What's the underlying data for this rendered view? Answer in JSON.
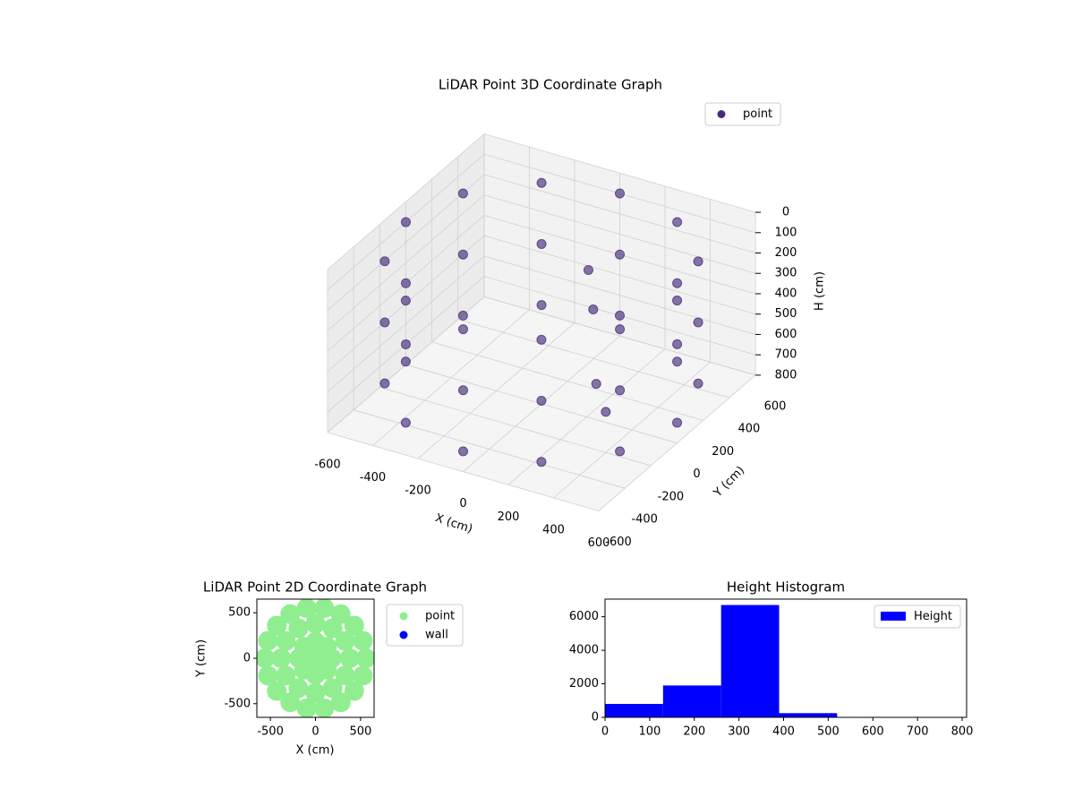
{
  "chart_data": [
    {
      "type": "scatter3d",
      "title": "LiDAR Point 3D Coordinate Graph",
      "xlabel": "X (cm)",
      "ylabel": "Y (cm)",
      "zlabel": "H (cm)",
      "xlim": [
        -600,
        600
      ],
      "ylim": [
        -600,
        600
      ],
      "zlim": [
        800,
        0
      ],
      "xticks": [
        -600,
        -400,
        -200,
        0,
        200,
        400,
        600
      ],
      "yticks": [
        -600,
        -400,
        -200,
        0,
        200,
        400,
        600
      ],
      "zticks": [
        0,
        100,
        200,
        300,
        400,
        500,
        600,
        700,
        800
      ],
      "legend": "upper right",
      "series": [
        {
          "name": "point",
          "color": "#472c7a",
          "x": [
            600,
            520,
            300,
            0,
            -300,
            -520,
            -600,
            -520,
            -300,
            0,
            300,
            520,
            600,
            520,
            300,
            0,
            -300,
            -520,
            -600,
            -520,
            -300,
            0,
            300,
            520,
            600,
            520,
            300,
            0,
            -300,
            -520,
            -600,
            -520,
            -300,
            0,
            300,
            520,
            150,
            200,
            300,
            400
          ],
          "y": [
            0,
            300,
            520,
            600,
            520,
            300,
            0,
            -300,
            -520,
            -600,
            -520,
            -300,
            0,
            300,
            520,
            600,
            520,
            300,
            0,
            -300,
            -520,
            -600,
            -520,
            -300,
            0,
            300,
            520,
            600,
            520,
            300,
            0,
            -300,
            -520,
            -600,
            -520,
            -300,
            100,
            50,
            -100,
            -200
          ],
          "z": [
            100,
            100,
            100,
            100,
            100,
            100,
            100,
            100,
            100,
            100,
            100,
            100,
            400,
            400,
            400,
            400,
            400,
            400,
            400,
            400,
            400,
            400,
            400,
            400,
            700,
            700,
            700,
            700,
            700,
            700,
            700,
            700,
            700,
            700,
            700,
            700,
            150,
            300,
            550,
            600
          ]
        }
      ]
    },
    {
      "type": "scatter",
      "title": "LiDAR Point 2D Coordinate Graph",
      "xlabel": "X (cm)",
      "ylabel": "Y (cm)",
      "xlim": [
        -650,
        650
      ],
      "ylim": [
        -650,
        650
      ],
      "xticks": [
        -500,
        0,
        500
      ],
      "yticks": [
        -500,
        0,
        500
      ],
      "legend": "outside",
      "series": [
        {
          "name": "point",
          "color": "#90ee90",
          "x": [
            0,
            180,
            127,
            0,
            -127,
            -180,
            -127,
            0,
            127,
            380,
            329,
            190,
            0,
            -190,
            -329,
            -380,
            -329,
            -190,
            0,
            190,
            329,
            560,
            526,
            429,
            280,
            97,
            -97,
            -280,
            -429,
            -526,
            -560,
            -526,
            -429,
            -280,
            -97,
            97,
            280,
            429,
            526
          ],
          "y": [
            0,
            0,
            127,
            180,
            127,
            0,
            -127,
            -180,
            -127,
            0,
            190,
            329,
            380,
            329,
            190,
            0,
            -190,
            -329,
            -380,
            -329,
            -190,
            0,
            192,
            360,
            485,
            551,
            551,
            485,
            360,
            192,
            0,
            -192,
            -360,
            -485,
            -551,
            -551,
            -485,
            -360,
            -192
          ]
        },
        {
          "name": "wall",
          "color": "#0000ff",
          "x": [],
          "y": []
        }
      ]
    },
    {
      "type": "histogram",
      "title": "Height Histogram",
      "name": "Height",
      "color": "#0000ff",
      "bins": [
        0,
        130,
        260,
        390,
        520,
        650,
        780
      ],
      "values": [
        800,
        1900,
        6700,
        250,
        20,
        10
      ],
      "xlim": [
        0,
        810
      ],
      "ylim": [
        0,
        7050
      ],
      "xticks": [
        0,
        100,
        200,
        300,
        400,
        500,
        600,
        700,
        800
      ],
      "yticks": [
        0,
        2000,
        4000,
        6000
      ],
      "legend": "upper right"
    }
  ]
}
